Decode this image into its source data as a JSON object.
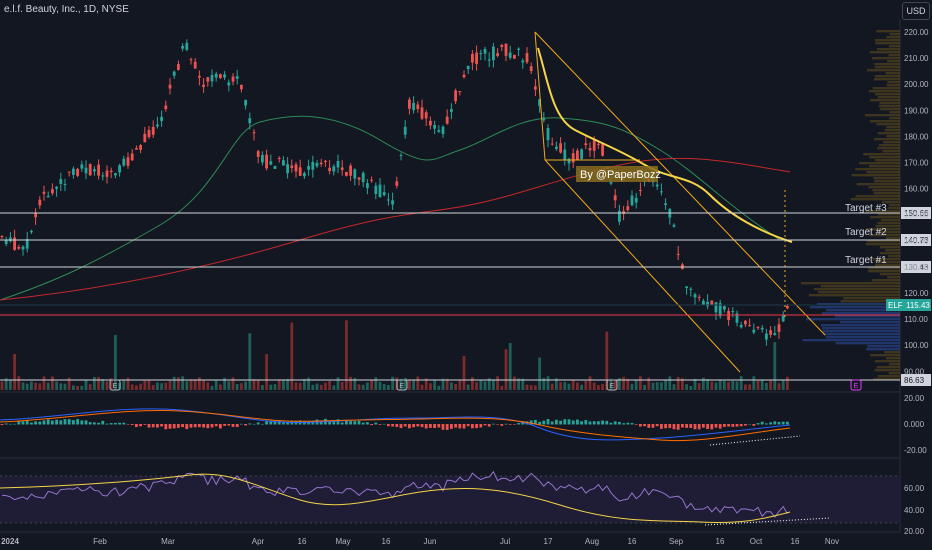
{
  "header": {
    "title": "e.l.f. Beauty, Inc., 1D, NYSE",
    "currency": "USD"
  },
  "watermark": "By @PaperBozz",
  "price_axis": {
    "ticks": [
      "220.00",
      "210.00",
      "200.00",
      "190.00",
      "180.00",
      "170.00",
      "160.00",
      "150.00",
      "140.00",
      "130.00",
      "120.00",
      "110.00",
      "100.00",
      "90.00"
    ]
  },
  "levels": [
    {
      "label": "Target #3",
      "price": "150.66",
      "color": "#d1d4dc"
    },
    {
      "label": "Target #2",
      "price": "140.73",
      "color": "#d1d4dc"
    },
    {
      "label": "Target #1",
      "price": "130.43",
      "color": "#d1d4dc"
    },
    {
      "label": "",
      "price": "86.63",
      "color": "#d1d4dc"
    }
  ],
  "current_price": {
    "symbol": "ELF",
    "value": "115.43",
    "color": "#26a69a"
  },
  "red_level_color": "#f23645",
  "macd_axis": {
    "ticks": [
      "20.00",
      "0.000",
      "-20.00"
    ]
  },
  "rsi_axis": {
    "ticks": [
      "60.00",
      "40.00",
      "20.00"
    ]
  },
  "time_axis": {
    "ticks": [
      "2024",
      "Feb",
      "Mar",
      "Apr",
      "16",
      "May",
      "16",
      "Jun",
      "Jul",
      "17",
      "Aug",
      "16",
      "Sep",
      "16",
      "Oct",
      "16",
      "Nov"
    ]
  },
  "event_markers": [
    "E",
    "E",
    "E",
    "E"
  ],
  "colors": {
    "up": "#26a69a",
    "down": "#ef5350",
    "ma_green": "#2e8b57",
    "ma_red": "#c62828",
    "yellow": "#f5d547",
    "channel": "#f2a81d",
    "background": "#131722"
  }
}
